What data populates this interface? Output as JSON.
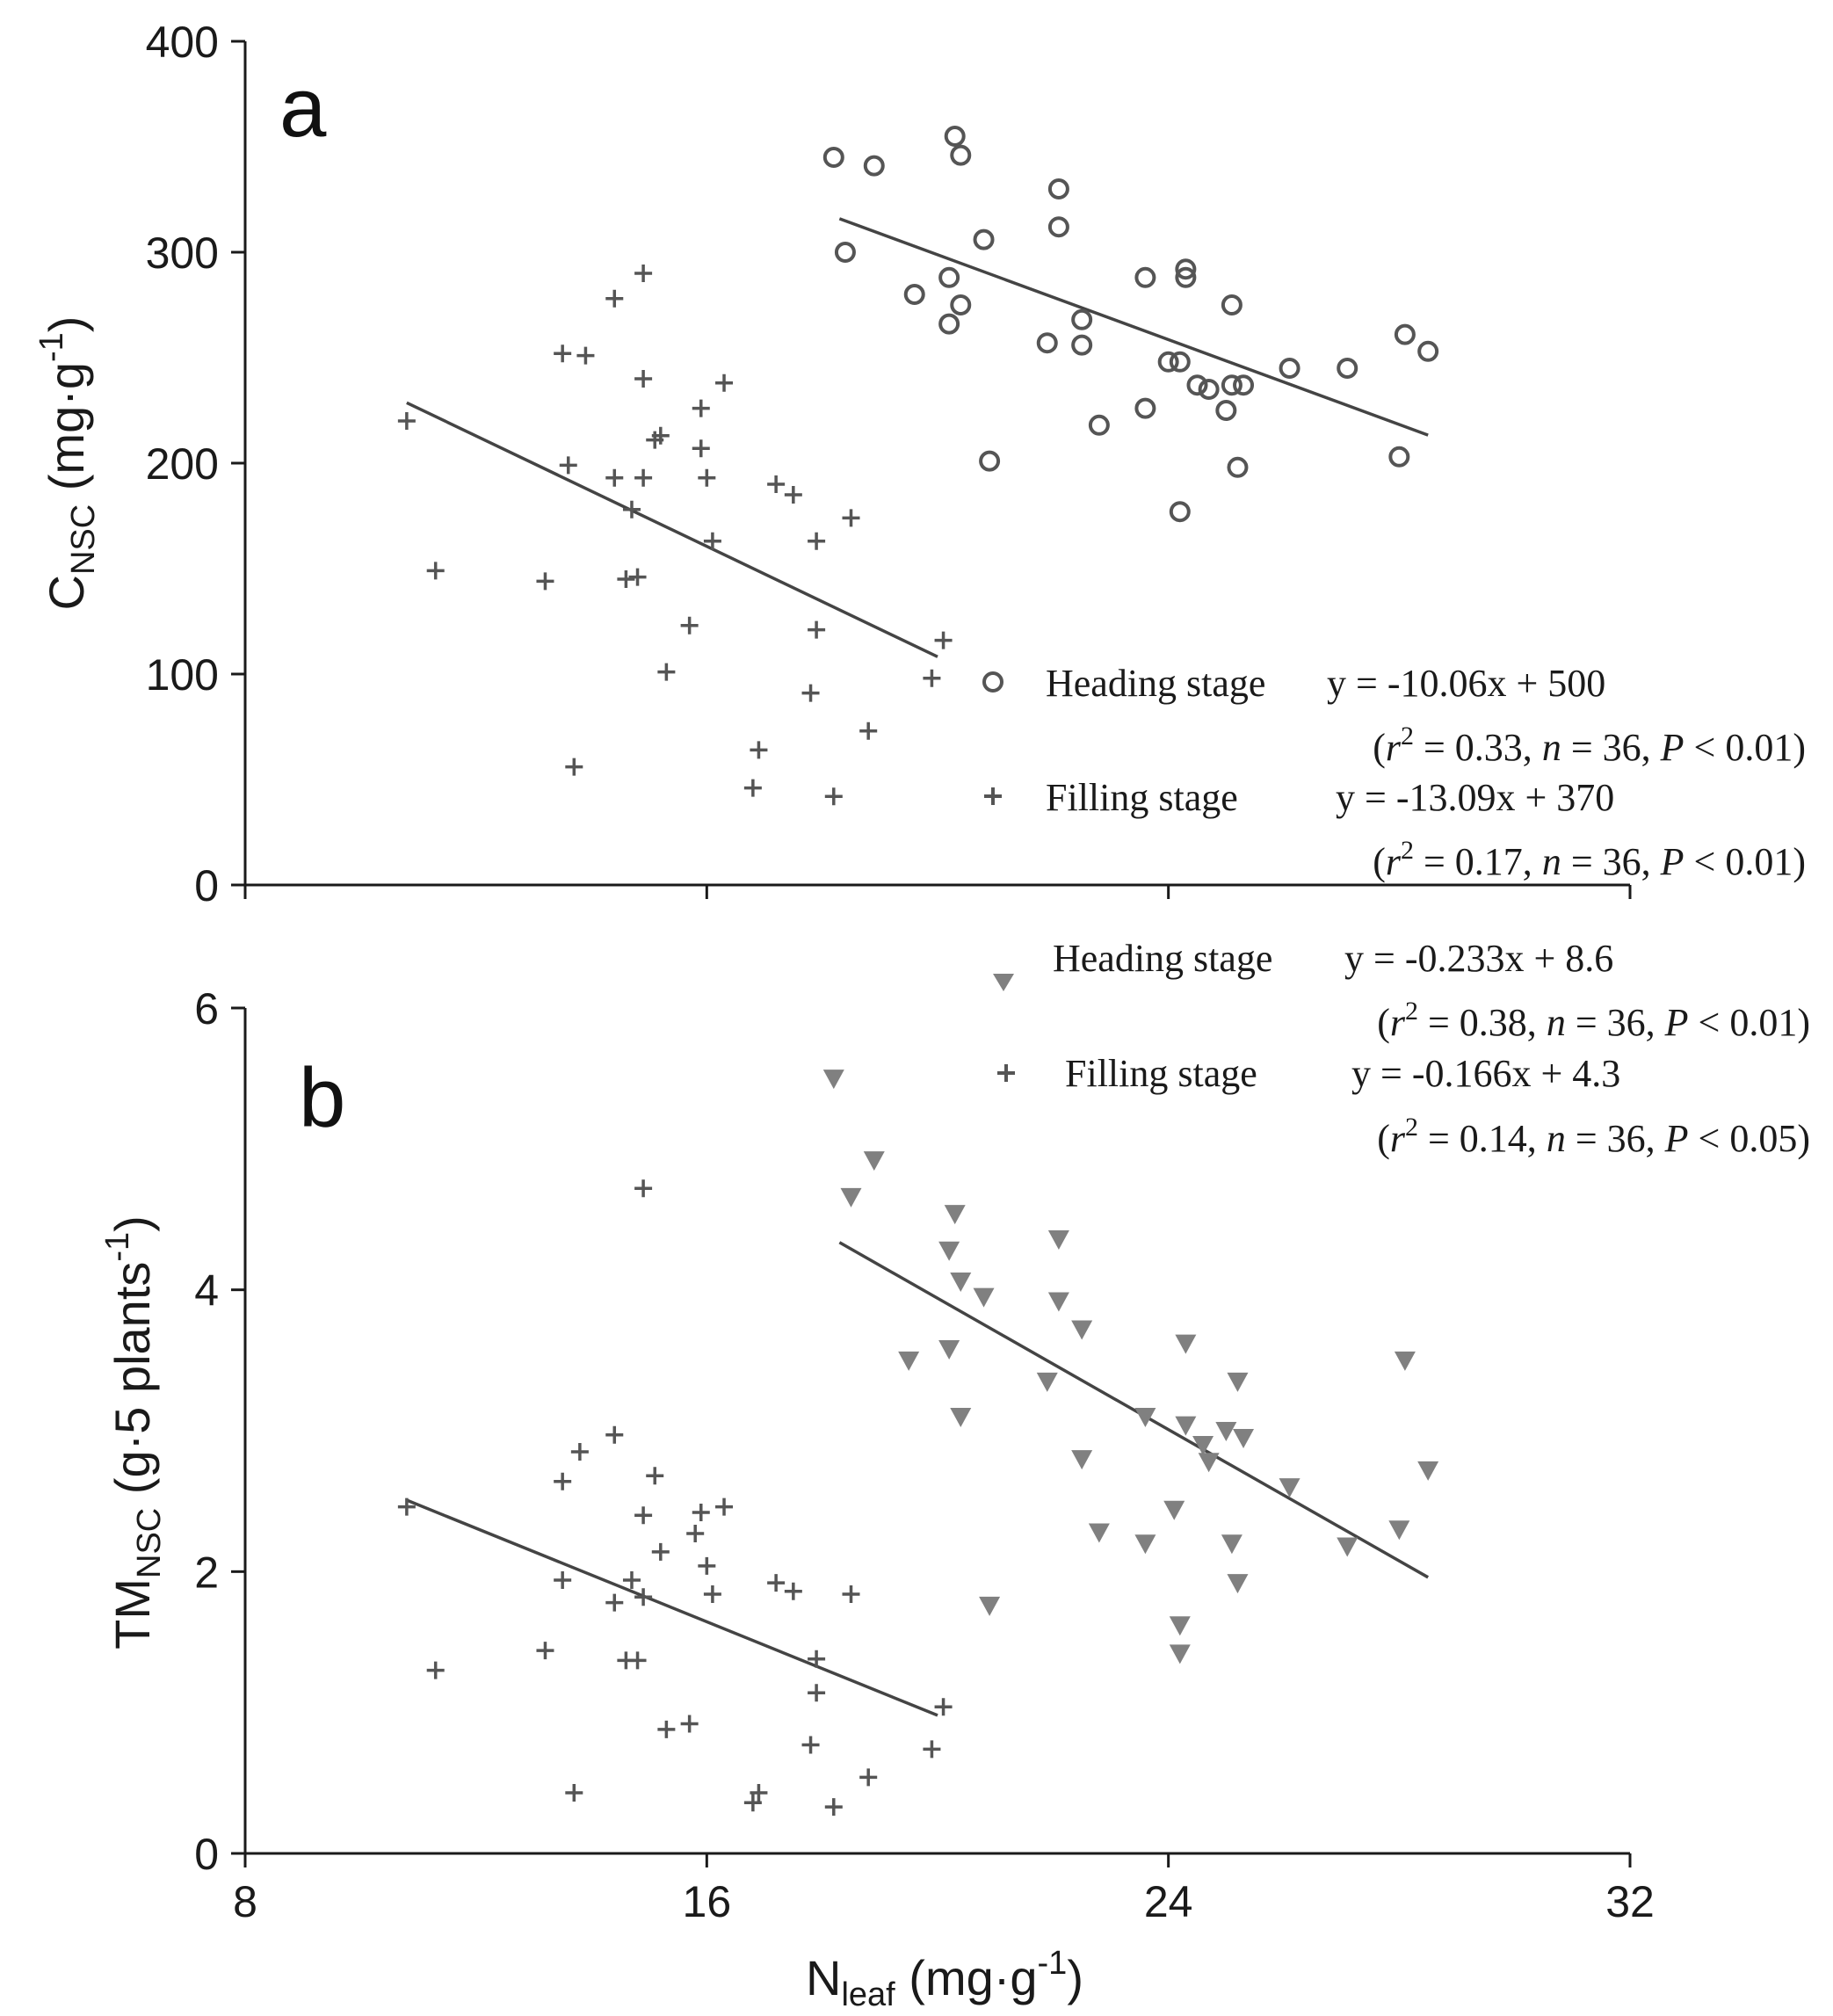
{
  "chart_data": [
    {
      "panel": "a",
      "type": "scatter",
      "title": "",
      "panel_label": "a",
      "xlabel": {
        "main": "N",
        "sub": "leaf",
        "unit": "(mg·g",
        "sup": "-1",
        "close": ")"
      },
      "ylabel": {
        "main": "C",
        "sub": "NSC",
        "unit": "(mg·g",
        "sup": "-1",
        "close": ")"
      },
      "xlim": [
        8,
        32
      ],
      "ylim": [
        0,
        400
      ],
      "xticks": [
        8,
        16,
        24,
        32
      ],
      "yticks": [
        0,
        100,
        200,
        300,
        400
      ],
      "color_marks": "#555555",
      "series": [
        {
          "name": "Heading stage",
          "marker": "circle",
          "equation": "y = -10.06x + 500",
          "stats": [
            "(",
            "r",
            "2",
            " = 0.33, ",
            "n",
            " = 36, ",
            "P",
            " < 0.01)"
          ],
          "fit": {
            "slope": -10.06,
            "intercept": 500,
            "xmin": 18.3,
            "xmax": 28.5
          },
          "points": [
            [
              18.2,
              345
            ],
            [
              18.4,
              300
            ],
            [
              18.9,
              341
            ],
            [
              19.6,
              280
            ],
            [
              20.3,
              355
            ],
            [
              20.4,
              346
            ],
            [
              20.2,
              288
            ],
            [
              20.2,
              266
            ],
            [
              20.4,
              275
            ],
            [
              20.8,
              306
            ],
            [
              20.9,
              201
            ],
            [
              21.9,
              257
            ],
            [
              22.1,
              330
            ],
            [
              22.1,
              312
            ],
            [
              22.5,
              268
            ],
            [
              22.5,
              256
            ],
            [
              22.8,
              218
            ],
            [
              23.6,
              288
            ],
            [
              23.6,
              226
            ],
            [
              24.0,
              248
            ],
            [
              24.2,
              248
            ],
            [
              24.3,
              292
            ],
            [
              24.3,
              288
            ],
            [
              24.2,
              177
            ],
            [
              24.5,
              237
            ],
            [
              24.7,
              235
            ],
            [
              25.0,
              225
            ],
            [
              25.1,
              237
            ],
            [
              25.3,
              237
            ],
            [
              25.2,
              198
            ],
            [
              25.1,
              275
            ],
            [
              26.1,
              245
            ],
            [
              27.1,
              245
            ],
            [
              28.0,
              203
            ],
            [
              28.1,
              261
            ],
            [
              28.5,
              253
            ]
          ]
        },
        {
          "name": "Filling stage",
          "marker": "plus",
          "equation": "y = -13.09x + 370",
          "stats": [
            "(",
            "r",
            "2",
            " = 0.17, ",
            "n",
            " = 36, ",
            "P",
            " < 0.01)"
          ],
          "fit": {
            "slope": -13.09,
            "intercept": 370,
            "xmin": 10.8,
            "xmax": 20.0
          },
          "points": [
            [
              10.8,
              220
            ],
            [
              11.3,
              149
            ],
            [
              13.2,
              144
            ],
            [
              13.5,
              252
            ],
            [
              13.6,
              199
            ],
            [
              13.7,
              56
            ],
            [
              13.9,
              251
            ],
            [
              14.4,
              278
            ],
            [
              14.4,
              193
            ],
            [
              14.6,
              145
            ],
            [
              14.7,
              178
            ],
            [
              14.8,
              146
            ],
            [
              14.9,
              240
            ],
            [
              14.9,
              193
            ],
            [
              14.9,
              290
            ],
            [
              15.1,
              211
            ],
            [
              15.2,
              213
            ],
            [
              15.3,
              101
            ],
            [
              15.7,
              123
            ],
            [
              15.9,
              226
            ],
            [
              15.9,
              207
            ],
            [
              16.0,
              193
            ],
            [
              16.1,
              163
            ],
            [
              16.3,
              238
            ],
            [
              16.8,
              46
            ],
            [
              16.9,
              64
            ],
            [
              17.2,
              190
            ],
            [
              17.5,
              185
            ],
            [
              17.9,
              163
            ],
            [
              17.9,
              121
            ],
            [
              17.8,
              91
            ],
            [
              18.2,
              42
            ],
            [
              18.5,
              174
            ],
            [
              18.8,
              73
            ],
            [
              19.9,
              98
            ],
            [
              20.1,
              116
            ]
          ]
        }
      ]
    },
    {
      "panel": "b",
      "type": "scatter",
      "title": "",
      "panel_label": "b",
      "xlabel": {
        "main": "N",
        "sub": "leaf",
        "unit": "(mg·g",
        "sup": "-1",
        "close": ")"
      },
      "ylabel": {
        "main": "TM",
        "sub": "NSC",
        "unit": "(g·5 plants",
        "sup": "-1",
        "close": ")"
      },
      "xlim": [
        8,
        32
      ],
      "ylim": [
        0,
        6
      ],
      "xticks": [
        8,
        16,
        24,
        32
      ],
      "yticks": [
        0,
        2,
        4,
        6
      ],
      "color_triangles": "#808080",
      "color_marks": "#555555",
      "series": [
        {
          "name": "Heading stage",
          "marker": "triangle-down",
          "equation": "y = -0.233x + 8.6",
          "stats": [
            "(",
            "r",
            "2",
            " = 0.38, ",
            "n",
            " = 36, ",
            "P",
            " < 0.01)"
          ],
          "fit": {
            "slope": -0.233,
            "intercept": 8.6,
            "xmin": 18.3,
            "xmax": 28.5
          },
          "points": [
            [
              18.2,
              5.5
            ],
            [
              18.5,
              4.66
            ],
            [
              18.9,
              4.92
            ],
            [
              19.5,
              3.5
            ],
            [
              20.2,
              4.28
            ],
            [
              20.2,
              3.58
            ],
            [
              20.3,
              4.54
            ],
            [
              20.4,
              4.06
            ],
            [
              20.4,
              3.1
            ],
            [
              20.8,
              3.95
            ],
            [
              20.9,
              1.76
            ],
            [
              21.9,
              3.35
            ],
            [
              22.1,
              4.36
            ],
            [
              22.1,
              3.92
            ],
            [
              22.5,
              3.72
            ],
            [
              22.5,
              2.8
            ],
            [
              22.8,
              2.28
            ],
            [
              23.6,
              3.1
            ],
            [
              23.6,
              2.2
            ],
            [
              24.1,
              2.44
            ],
            [
              24.2,
              1.62
            ],
            [
              24.2,
              1.42
            ],
            [
              24.3,
              3.62
            ],
            [
              24.3,
              3.04
            ],
            [
              24.6,
              2.9
            ],
            [
              24.7,
              2.78
            ],
            [
              25.0,
              3.0
            ],
            [
              25.1,
              2.2
            ],
            [
              25.2,
              3.35
            ],
            [
              25.2,
              1.92
            ],
            [
              25.3,
              2.95
            ],
            [
              26.1,
              2.6
            ],
            [
              27.1,
              2.18
            ],
            [
              28.0,
              2.3
            ],
            [
              28.1,
              3.5
            ],
            [
              28.5,
              2.72
            ]
          ]
        },
        {
          "name": "Filling stage",
          "marker": "plus",
          "equation": "y = -0.166x + 4.3",
          "stats": [
            "(",
            "r",
            "2",
            " = 0.14, ",
            "n",
            " = 36, ",
            "P",
            " < 0.05)"
          ],
          "fit": {
            "slope": -0.166,
            "intercept": 4.3,
            "xmin": 10.8,
            "xmax": 20.0
          },
          "points": [
            [
              10.8,
              2.46
            ],
            [
              11.3,
              1.3
            ],
            [
              13.2,
              1.44
            ],
            [
              13.5,
              2.64
            ],
            [
              13.5,
              1.94
            ],
            [
              13.7,
              0.43
            ],
            [
              13.8,
              2.85
            ],
            [
              14.4,
              2.97
            ],
            [
              14.4,
              1.78
            ],
            [
              14.6,
              1.37
            ],
            [
              14.7,
              1.94
            ],
            [
              14.8,
              1.37
            ],
            [
              14.9,
              2.4
            ],
            [
              14.9,
              1.82
            ],
            [
              14.9,
              4.72
            ],
            [
              15.1,
              2.68
            ],
            [
              15.2,
              2.14
            ],
            [
              15.3,
              0.88
            ],
            [
              15.7,
              0.92
            ],
            [
              15.8,
              2.27
            ],
            [
              15.9,
              2.42
            ],
            [
              16.0,
              2.04
            ],
            [
              16.1,
              1.84
            ],
            [
              16.3,
              2.46
            ],
            [
              16.8,
              0.36
            ],
            [
              16.9,
              0.43
            ],
            [
              17.2,
              1.92
            ],
            [
              17.5,
              1.86
            ],
            [
              17.9,
              1.38
            ],
            [
              17.9,
              1.14
            ],
            [
              17.8,
              0.77
            ],
            [
              18.2,
              0.33
            ],
            [
              18.5,
              1.84
            ],
            [
              18.8,
              0.54
            ],
            [
              19.9,
              0.74
            ],
            [
              20.1,
              1.04
            ]
          ]
        }
      ]
    }
  ]
}
